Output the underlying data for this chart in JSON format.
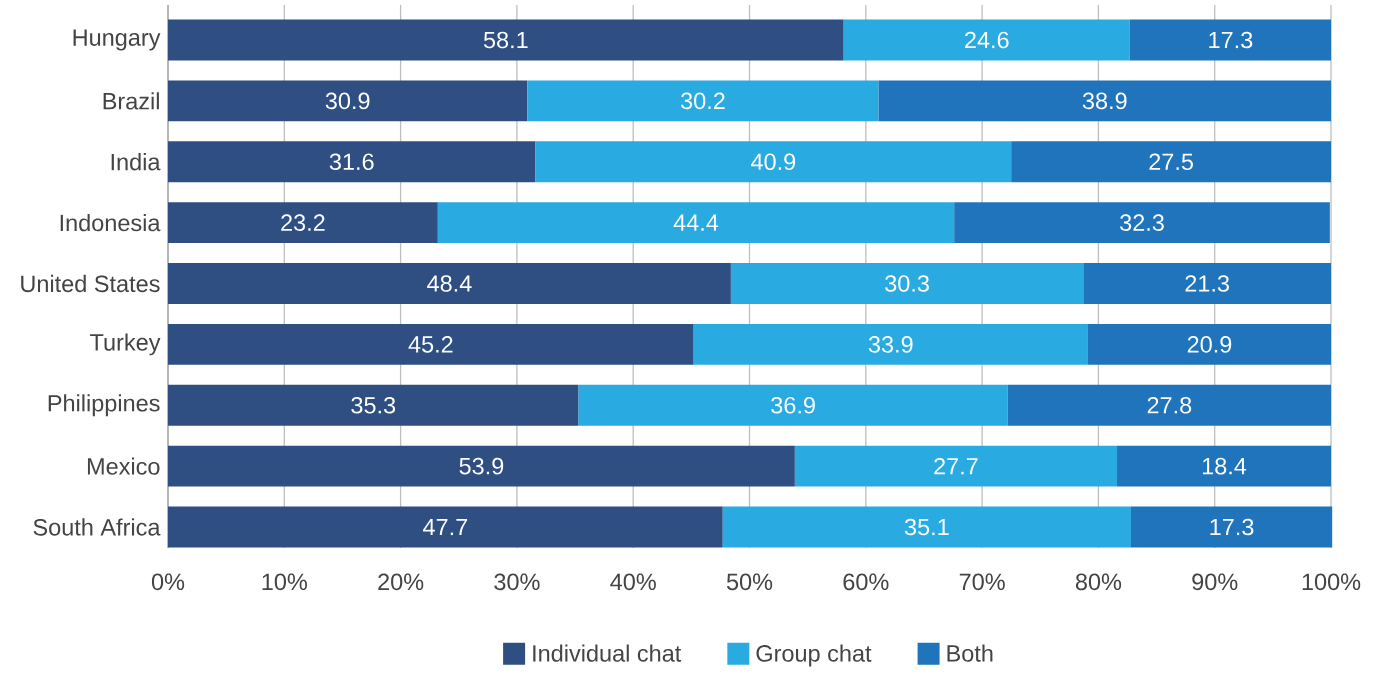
{
  "chart_data": {
    "type": "bar",
    "orientation": "horizontal",
    "stacked": true,
    "categories": [
      "Hungary",
      "Brazil",
      "India",
      "Indonesia",
      "United States",
      "Turkey",
      "Philippines",
      "Mexico",
      "South Africa"
    ],
    "series": [
      {
        "name": "Individual chat",
        "color": "#2f4f82",
        "values": [
          58.1,
          30.9,
          31.6,
          23.2,
          48.4,
          45.2,
          35.3,
          53.9,
          47.7
        ]
      },
      {
        "name": "Group chat",
        "color": "#29abe2",
        "values": [
          24.6,
          30.2,
          40.9,
          44.4,
          30.3,
          33.9,
          36.9,
          27.7,
          35.1
        ]
      },
      {
        "name": "Both",
        "color": "#1f74bb",
        "values": [
          17.3,
          38.9,
          27.5,
          32.3,
          21.3,
          20.9,
          27.8,
          18.4,
          17.3
        ]
      }
    ],
    "xlim": [
      0,
      100
    ],
    "xticks": [
      {
        "value": 0,
        "label": "0%"
      },
      {
        "value": 10,
        "label": "10%"
      },
      {
        "value": 20,
        "label": "20%"
      },
      {
        "value": 30,
        "label": "30%"
      },
      {
        "value": 40,
        "label": "40%"
      },
      {
        "value": 50,
        "label": "50%"
      },
      {
        "value": 60,
        "label": "60%"
      },
      {
        "value": 70,
        "label": "70%"
      },
      {
        "value": 80,
        "label": "80%"
      },
      {
        "value": 90,
        "label": "90%"
      },
      {
        "value": 100,
        "label": "100%"
      }
    ],
    "grid": "x",
    "legend": "bottom",
    "data_labels": true
  }
}
